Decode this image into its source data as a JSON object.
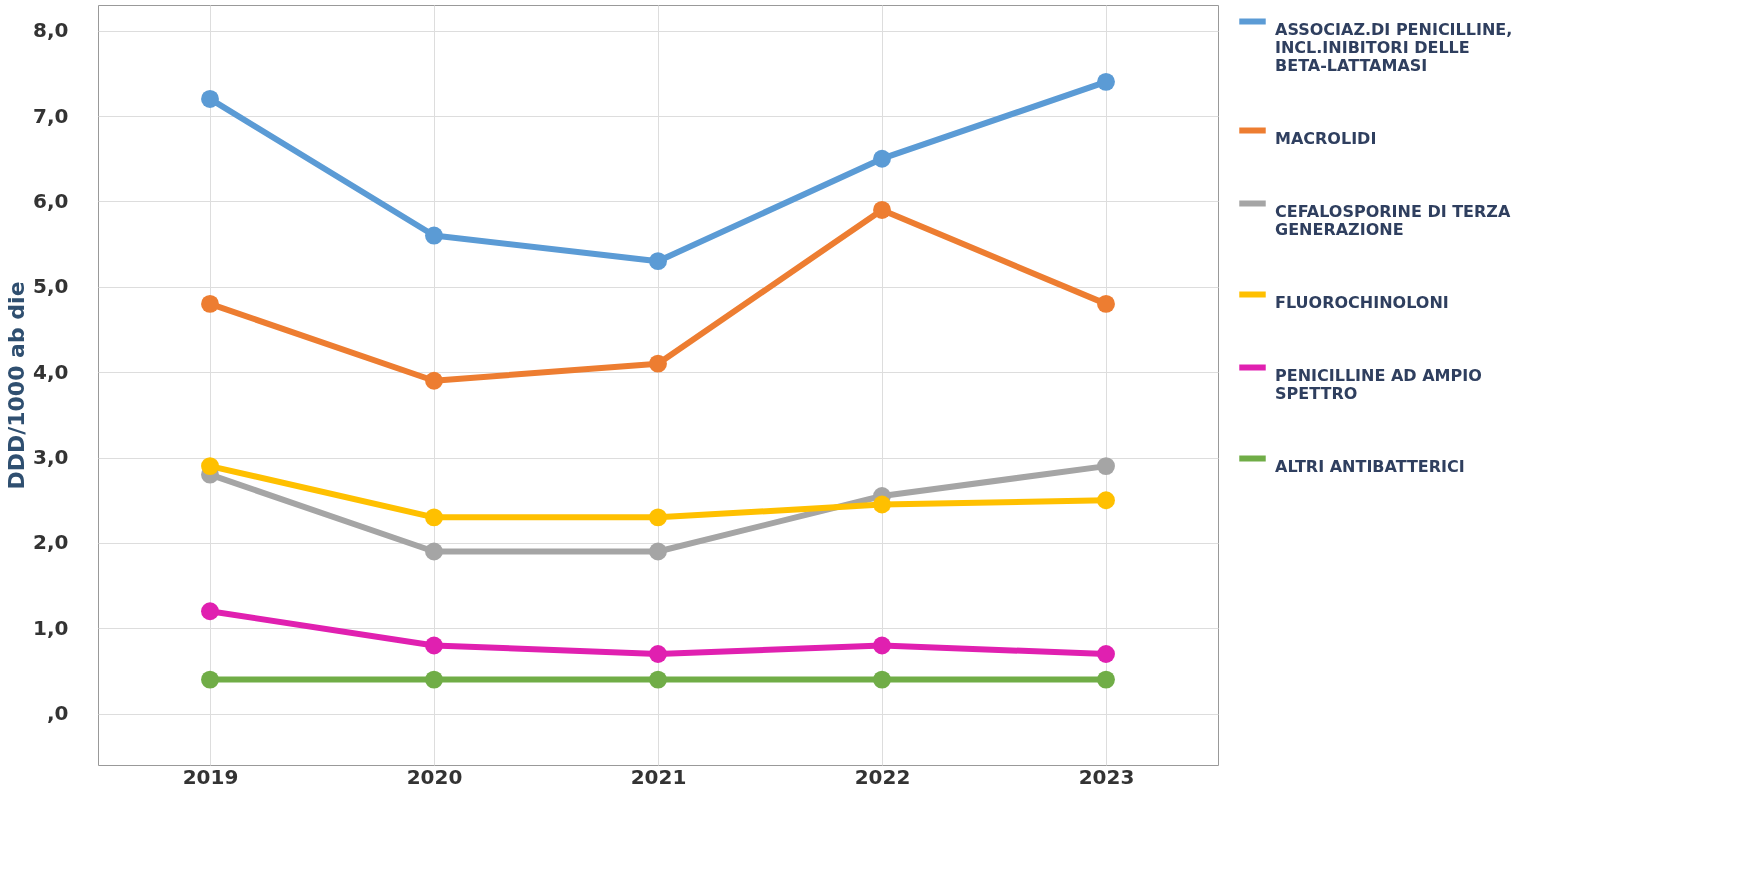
{
  "chart_data": {
    "type": "line",
    "ylabel": "DDD/1000 ab die",
    "categories": [
      "2019",
      "2020",
      "2021",
      "2022",
      "2023"
    ],
    "series": [
      {
        "name": "ASSOCIAZ.DI PENICILLINE, INCL.INIBITORI DELLE BETA-LATTAMASI",
        "color": "#5b9bd5",
        "values": [
          7.2,
          5.6,
          5.3,
          6.5,
          7.4
        ]
      },
      {
        "name": "MACROLIDI",
        "color": "#ed7d31",
        "values": [
          4.8,
          3.9,
          4.1,
          5.9,
          4.8
        ]
      },
      {
        "name": "CEFALOSPORINE DI TERZA GENERAZIONE",
        "color": "#a5a5a5",
        "values": [
          2.8,
          1.9,
          1.9,
          2.55,
          2.9
        ]
      },
      {
        "name": "FLUOROCHINOLONI",
        "color": "#ffc000",
        "values": [
          2.9,
          2.3,
          2.3,
          2.45,
          2.5
        ]
      },
      {
        "name": "PENICILLINE AD AMPIO SPETTRO",
        "color": "#e020b0",
        "values": [
          1.2,
          0.8,
          0.7,
          0.8,
          0.7
        ]
      },
      {
        "name": "ALTRI ANTIBATTERICI",
        "color": "#70ad47",
        "values": [
          0.4,
          0.4,
          0.4,
          0.4,
          0.4
        ]
      }
    ],
    "ylim": [
      -0.6,
      8.3
    ],
    "yticks": [
      {
        "value": 0,
        "label": ",0"
      },
      {
        "value": 1,
        "label": "1,0"
      },
      {
        "value": 2,
        "label": "2,0"
      },
      {
        "value": 3,
        "label": "3,0"
      },
      {
        "value": 4,
        "label": "4,0"
      },
      {
        "value": 5,
        "label": "5,0"
      },
      {
        "value": 6,
        "label": "6,0"
      },
      {
        "value": 7,
        "label": "7,0"
      },
      {
        "value": 8,
        "label": "8,0"
      }
    ],
    "grid": true,
    "legend": "right",
    "marker": "circle",
    "line_style": "solid"
  }
}
